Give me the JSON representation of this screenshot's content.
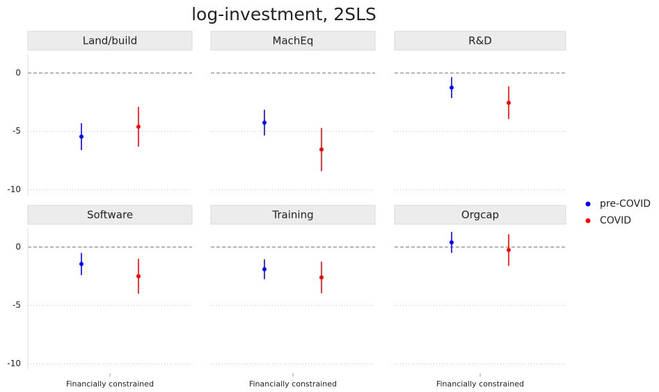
{
  "chart_data": {
    "type": "errorbar",
    "title": "log-investment, 2SLS",
    "categories": [
      "Financially constrained"
    ],
    "series": [
      {
        "name": "pre-COVID",
        "color": "#0000ff"
      },
      {
        "name": "COVID",
        "color": "#ff0000"
      }
    ],
    "facets": [
      {
        "title": "Land/build",
        "values": [
          -5.45,
          -4.6
        ],
        "errors": [
          1.15,
          1.7
        ]
      },
      {
        "title": "MachEq",
        "values": [
          -4.25,
          -6.55
        ],
        "errors": [
          1.1,
          1.85
        ]
      },
      {
        "title": "R&D",
        "values": [
          -1.25,
          -2.55
        ],
        "errors": [
          0.9,
          1.4
        ]
      },
      {
        "title": "Software",
        "values": [
          -1.45,
          -2.5
        ],
        "errors": [
          0.95,
          1.5
        ]
      },
      {
        "title": "Training",
        "values": [
          -1.9,
          -2.6
        ],
        "errors": [
          0.85,
          1.35
        ]
      },
      {
        "title": "Orgcap",
        "values": [
          0.4,
          -0.25
        ],
        "errors": [
          0.9,
          1.35
        ]
      }
    ],
    "ylim": [
      -10.5,
      1.6
    ],
    "yticks": [
      -10,
      -5,
      0
    ],
    "grid": true
  }
}
